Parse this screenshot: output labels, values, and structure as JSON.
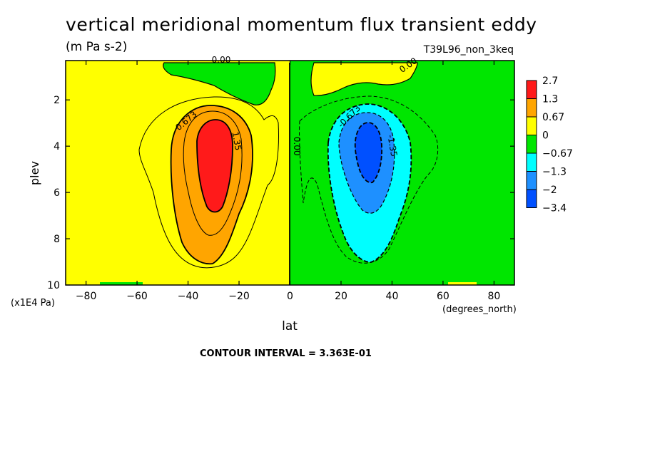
{
  "chart_data": {
    "type": "contour",
    "title": "vertical meridional momentum flux transient eddy",
    "units": "(m Pa s-2)",
    "dataset_label": "T39L96_non_3keq",
    "xlabel": "lat",
    "xunits": "(degrees_north)",
    "ylabel": "plev",
    "yunits": "(x1E4 Pa)",
    "xlim": [
      -88,
      88
    ],
    "ylim": [
      10,
      0.3
    ],
    "x_ticks": [
      -80,
      -60,
      -40,
      -20,
      0,
      20,
      40,
      60,
      80
    ],
    "x_tick_labels": [
      "−80",
      "−60",
      "−40",
      "−20",
      "0",
      "20",
      "40",
      "60",
      "80"
    ],
    "y_ticks": [
      2,
      4,
      6,
      8,
      10
    ],
    "y_tick_labels": [
      "2",
      "4",
      "6",
      "8",
      "10"
    ],
    "contour_interval_text": "CONTOUR INTERVAL = 3.363E-01",
    "contour_interval": 0.3363,
    "extrema": [
      {
        "lat": -30,
        "plev": 4.2,
        "value": 2.7,
        "sign": "positive"
      },
      {
        "lat": 30,
        "plev": 4.0,
        "value": -3.4,
        "sign": "negative"
      }
    ],
    "contour_labels": [
      {
        "text": "0.00",
        "lat": -27,
        "plev": 0.4
      },
      {
        "text": "0.00",
        "lat": 47,
        "plev": 0.6
      },
      {
        "text": "0.673",
        "lat": -40,
        "plev": 3.0
      },
      {
        "text": "1.35",
        "lat": -22,
        "plev": 3.8
      },
      {
        "text": "0.00",
        "lat": 1.5,
        "plev": 4.0
      },
      {
        "text": "-0.673",
        "lat": 24,
        "plev": 2.8
      },
      {
        "text": "-1.35",
        "lat": 39,
        "plev": 4.0
      }
    ],
    "colorbar": {
      "labels": [
        "2.7",
        "1.3",
        "0.67",
        "0",
        "−0.67",
        "−1.3",
        "−2",
        "−3.4"
      ],
      "colors": [
        "#ff1a1a",
        "#ffa500",
        "#ffff00",
        "#00e600",
        "#00ffff",
        "#1e90ff",
        "#0050ff"
      ]
    },
    "colors": {
      "positive_low": "#ffff00",
      "positive_mid": "#ffa500",
      "positive_high": "#ff1a1a",
      "negative_low": "#00e600",
      "negative_mid": "#00ffff",
      "negative_high": "#1e90ff",
      "negative_max": "#0050ff"
    }
  }
}
